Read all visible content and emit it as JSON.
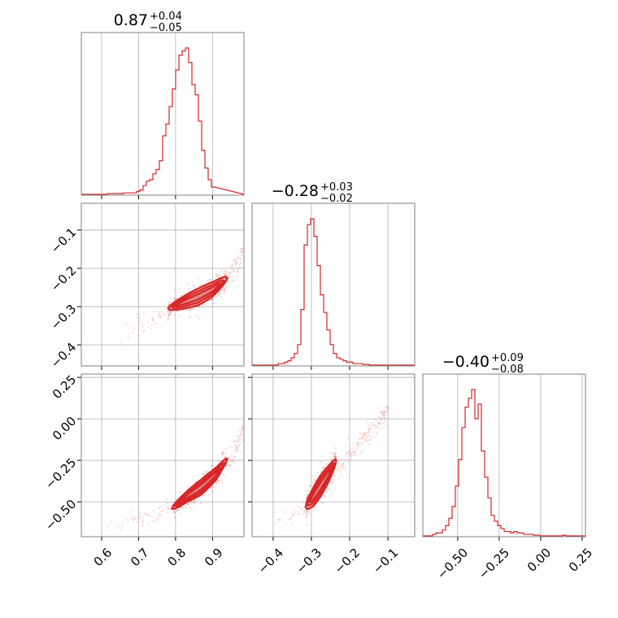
{
  "chart_data": {
    "type": "corner",
    "color": "#d62728",
    "parameters": [
      {
        "title_main": "0.87",
        "title_plus": "+0.04",
        "title_minus": "−0.05",
        "range": [
          0.545,
          0.985
        ],
        "ticks": [
          0.6,
          0.7,
          0.8,
          0.9
        ],
        "tick_labels": [
          "0.6",
          "0.7",
          "0.8",
          "0.9"
        ]
      },
      {
        "title_main": "−0.28",
        "title_plus": "+0.03",
        "title_minus": "−0.02",
        "range": [
          -0.455,
          -0.03
        ],
        "ticks": [
          -0.4,
          -0.3,
          -0.2,
          -0.1
        ],
        "tick_labels": [
          "−0.4",
          "−0.3",
          "−0.2",
          "−0.1"
        ]
      },
      {
        "title_main": "−0.40",
        "title_plus": "+0.09",
        "title_minus": "−0.08",
        "range": [
          -0.71,
          0.27
        ],
        "ticks": [
          -0.5,
          -0.25,
          0.0,
          0.25
        ],
        "tick_labels": [
          "−0.50",
          "−0.25",
          "0.00",
          "0.25"
        ]
      }
    ],
    "histograms": [
      {
        "param": 0,
        "bin_start": 0.545,
        "bin_width": 0.0088,
        "counts": [
          0,
          0,
          0,
          0,
          0,
          0,
          0,
          0,
          0.5,
          0.5,
          0.5,
          0.5,
          0.5,
          1,
          1,
          1,
          1,
          2,
          3,
          6,
          9,
          10,
          14,
          17,
          23,
          40,
          48,
          60,
          72,
          85,
          95,
          98,
          100,
          90,
          75,
          68,
          50,
          30,
          18,
          10,
          5
        ]
      },
      {
        "param": 1,
        "bin_start": -0.455,
        "bin_width": 0.0085,
        "counts": [
          0,
          0,
          0,
          0,
          0,
          0,
          0,
          0,
          1,
          1,
          2,
          3,
          5,
          8,
          14,
          38,
          82,
          96,
          100,
          88,
          68,
          48,
          36,
          24,
          14,
          8,
          5,
          4,
          3,
          2,
          2,
          1,
          1,
          1,
          0.5,
          0.5,
          0,
          0,
          0,
          0
        ]
      },
      {
        "param": 2,
        "bin_start": -0.71,
        "bin_width": 0.0196,
        "counts": [
          0,
          0,
          0,
          1,
          2,
          2,
          4,
          7,
          12,
          20,
          34,
          52,
          74,
          88,
          94,
          100,
          80,
          90,
          58,
          40,
          26,
          14,
          10,
          7,
          5,
          3,
          3,
          2,
          3,
          2,
          2,
          1,
          1,
          1,
          0.5,
          0.5,
          0,
          0,
          0,
          0,
          0,
          0,
          0,
          0.5,
          0,
          0,
          0,
          0,
          0,
          0
        ]
      }
    ],
    "pairs": [
      {
        "x_param": 0,
        "y_param": 1,
        "ridge_x": [
          0.78,
          0.82,
          0.86,
          0.9,
          0.94
        ],
        "ridge_y": [
          -0.305,
          -0.29,
          -0.275,
          -0.255,
          -0.225
        ],
        "ridge_width": [
          0.008,
          0.01,
          0.012,
          0.012,
          0.01
        ],
        "tail_x": [
          0.65,
          0.7,
          0.75,
          0.8,
          0.85,
          0.9,
          0.95,
          0.985
        ],
        "tail_y": [
          -0.37,
          -0.345,
          -0.325,
          -0.305,
          -0.285,
          -0.26,
          -0.22,
          -0.155
        ]
      },
      {
        "x_param": 0,
        "y_param": 2,
        "ridge_x": [
          0.79,
          0.83,
          0.87,
          0.91,
          0.94
        ],
        "ridge_y": [
          -0.54,
          -0.47,
          -0.41,
          -0.33,
          -0.24
        ],
        "ridge_width": [
          0.018,
          0.02,
          0.025,
          0.025,
          0.02
        ],
        "tail_x": [
          0.62,
          0.68,
          0.74,
          0.8,
          0.86,
          0.92,
          0.96,
          0.985
        ],
        "tail_y": [
          -0.66,
          -0.63,
          -0.58,
          -0.52,
          -0.44,
          -0.33,
          -0.2,
          -0.03
        ]
      },
      {
        "x_param": 1,
        "y_param": 2,
        "ridge_x": [
          -0.315,
          -0.295,
          -0.275,
          -0.255,
          -0.235
        ],
        "ridge_y": [
          -0.53,
          -0.47,
          -0.4,
          -0.33,
          -0.25
        ],
        "ridge_width": [
          0.03,
          0.035,
          0.035,
          0.03,
          0.025
        ],
        "tail_x": [
          -0.4,
          -0.35,
          -0.3,
          -0.25,
          -0.2,
          -0.15,
          -0.1
        ],
        "tail_y": [
          -0.62,
          -0.58,
          -0.5,
          -0.38,
          -0.22,
          -0.08,
          0.05
        ]
      }
    ]
  }
}
